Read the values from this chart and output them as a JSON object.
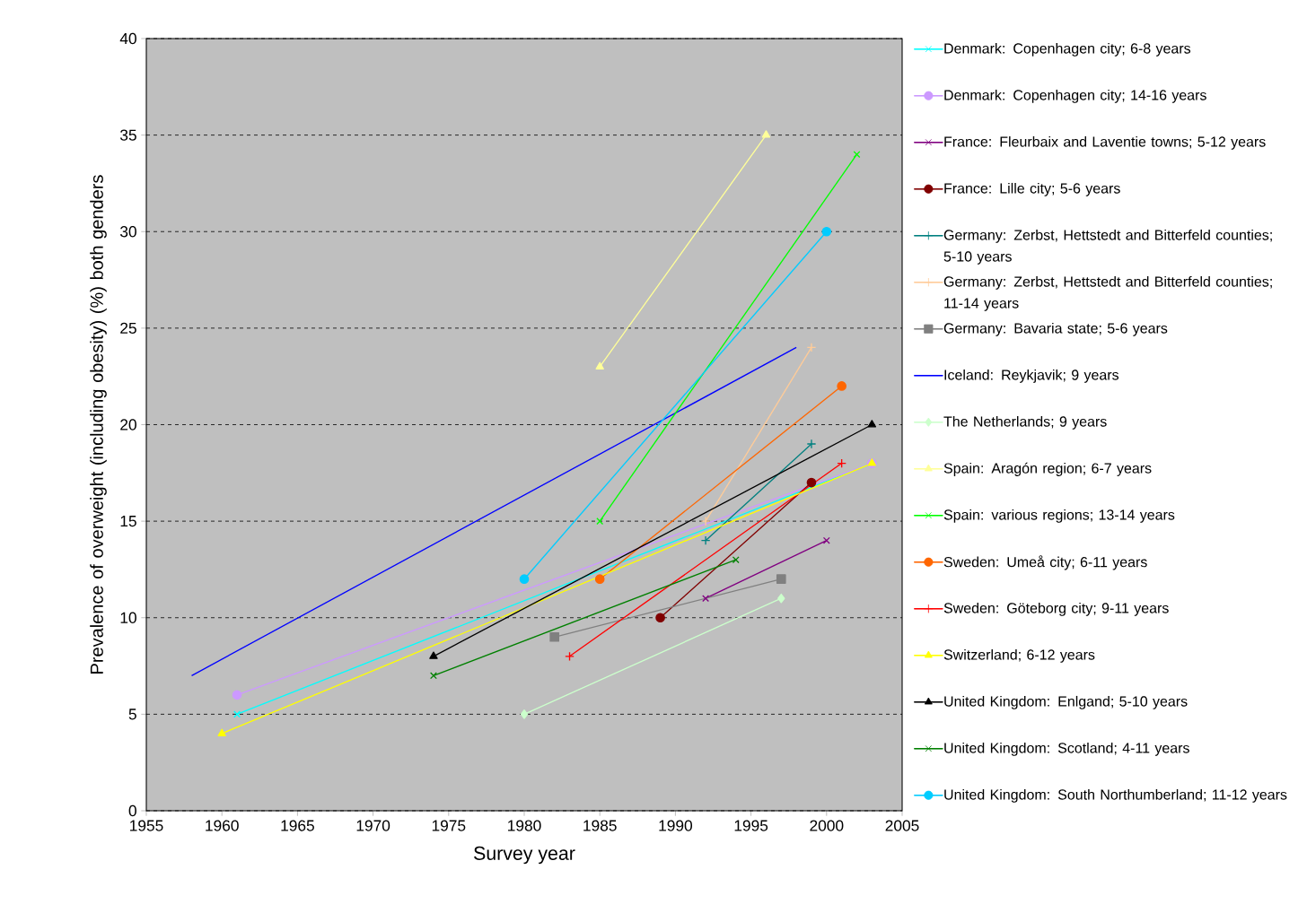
{
  "chart_data": {
    "type": "line",
    "xlabel": "Survey year",
    "ylabel": "Prevalence of overweight (including obesity) (%) both genders",
    "xlim": [
      1955,
      2005
    ],
    "xticks": [
      1955,
      1960,
      1965,
      1970,
      1975,
      1980,
      1985,
      1990,
      1995,
      2000,
      2005
    ],
    "ylim": [
      0,
      40
    ],
    "yticks": [
      0,
      5,
      10,
      15,
      20,
      25,
      30,
      35,
      40
    ],
    "grid": "y",
    "legend": "right",
    "series": [
      {
        "name": "Denmark: Copenhagen city; 6-8 years",
        "color": "#00ffff",
        "marker": "cross",
        "x": [
          1961,
          2003
        ],
        "values": [
          5,
          18
        ]
      },
      {
        "name": "Denmark: Copenhagen city; 14-16 years",
        "color": "#cc99ff",
        "marker": "circle",
        "x": [
          1961,
          2003
        ],
        "values": [
          6,
          18
        ]
      },
      {
        "name": "France: Fleurbaix and Laventie towns; 5-12 years",
        "color": "#800080",
        "marker": "cross",
        "x": [
          1992,
          2000
        ],
        "values": [
          11,
          14
        ]
      },
      {
        "name": "France: Lille city; 5-6 years",
        "color": "#800000",
        "marker": "circle",
        "x": [
          1989,
          1999
        ],
        "values": [
          10,
          17
        ]
      },
      {
        "name": "Germany: Zerbst, Hettstedt and Bitterfeld counties; 5-10 years",
        "color": "#008080",
        "marker": "plus",
        "x": [
          1992,
          1999
        ],
        "values": [
          14,
          19
        ]
      },
      {
        "name": "Germany: Zerbst, Hettstedt and Bitterfeld counties; 11-14 years",
        "color": "#ffcc99",
        "marker": "plus",
        "x": [
          1992,
          1999
        ],
        "values": [
          15,
          24
        ]
      },
      {
        "name": "Germany: Bavaria state; 5-6 years",
        "color": "#808080",
        "marker": "square",
        "x": [
          1982,
          1997
        ],
        "values": [
          9,
          12
        ]
      },
      {
        "name": "Iceland: Reykjavik; 9 years",
        "color": "#0000ff",
        "marker": "none",
        "x": [
          1958,
          1998
        ],
        "values": [
          7,
          24
        ]
      },
      {
        "name": "The Netherlands; 9 years",
        "color": "#ccffcc",
        "marker": "diamond",
        "x": [
          1980,
          1997
        ],
        "values": [
          5,
          11
        ]
      },
      {
        "name": "Spain: Aragón region; 6-7 years",
        "color": "#ffff99",
        "marker": "triangle",
        "x": [
          1985,
          1996
        ],
        "values": [
          23,
          35
        ]
      },
      {
        "name": "Spain: various regions; 13-14 years",
        "color": "#00ff00",
        "marker": "cross",
        "x": [
          1985,
          2002
        ],
        "values": [
          15,
          34
        ]
      },
      {
        "name": "Sweden: Umeå city; 6-11 years",
        "color": "#ff6600",
        "marker": "circle",
        "x": [
          1985,
          2001
        ],
        "values": [
          12,
          22
        ]
      },
      {
        "name": "Sweden: Göteborg city; 9-11 years",
        "color": "#ff0000",
        "marker": "plus",
        "x": [
          1983,
          2001
        ],
        "values": [
          8,
          18
        ]
      },
      {
        "name": "Switzerland; 6-12 years",
        "color": "#ffff00",
        "marker": "triangle",
        "x": [
          1960,
          2003
        ],
        "values": [
          4,
          18
        ]
      },
      {
        "name": "United Kingdom: Enlgand; 5-10 years",
        "color": "#000000",
        "marker": "triangle",
        "x": [
          1974,
          2003
        ],
        "values": [
          8,
          20
        ]
      },
      {
        "name": "United Kingdom: Scotland; 4-11 years",
        "color": "#008000",
        "marker": "cross",
        "x": [
          1974,
          1994
        ],
        "values": [
          7,
          13
        ]
      },
      {
        "name": "United Kingdom: South Northumberland; 11-12 years",
        "color": "#00ccff",
        "marker": "circle",
        "x": [
          1980,
          2000
        ],
        "values": [
          12,
          30
        ]
      }
    ]
  }
}
